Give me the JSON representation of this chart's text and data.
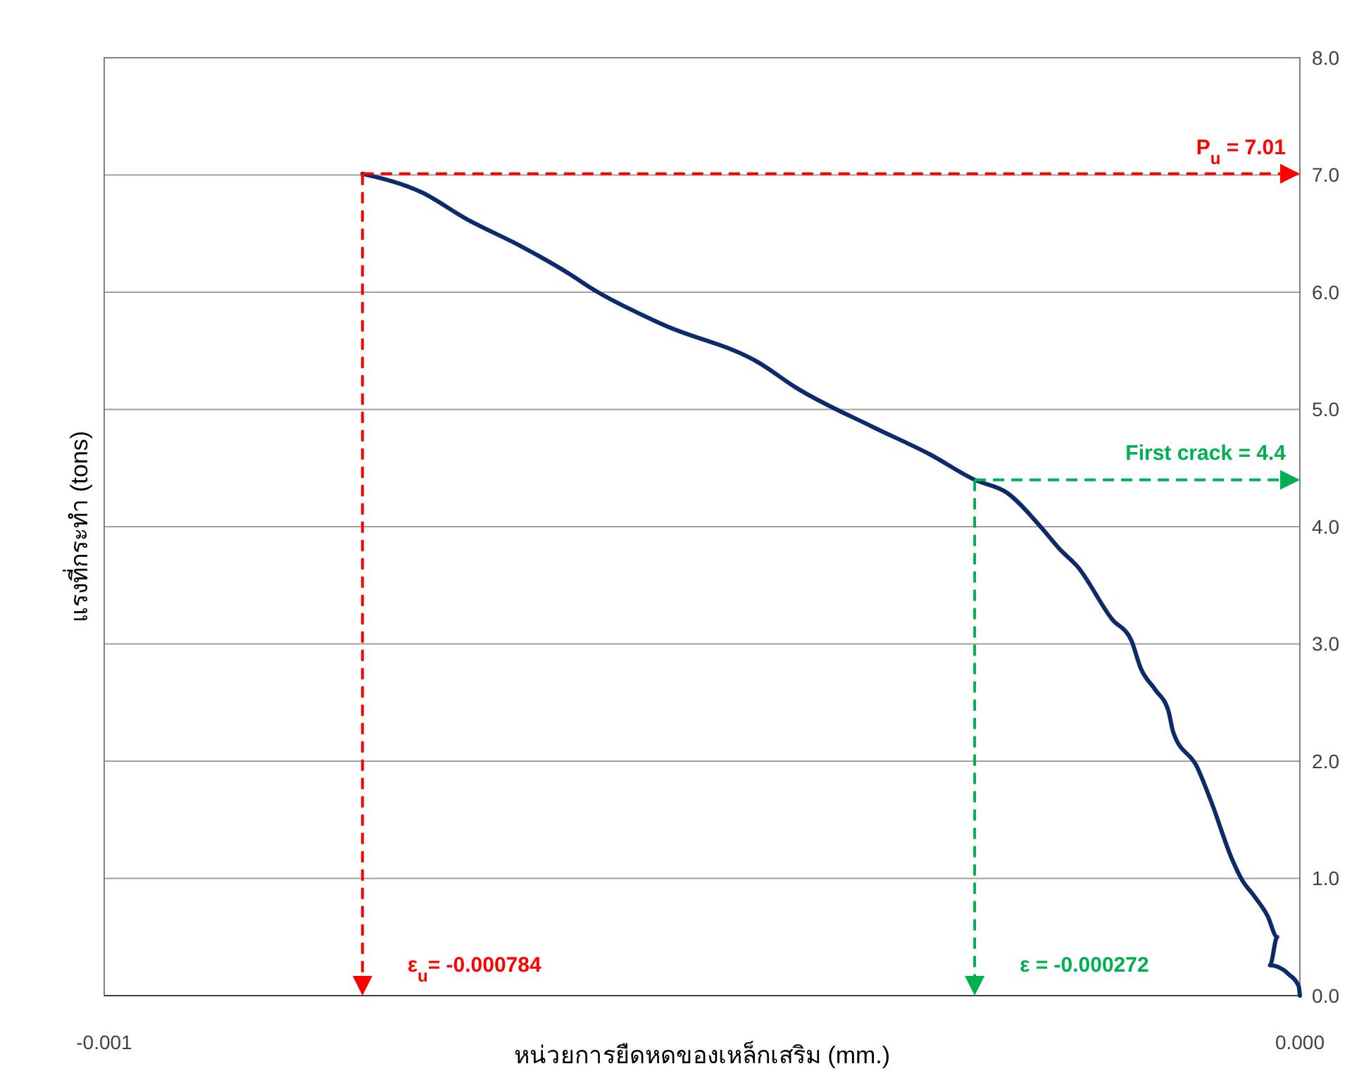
{
  "chart_data": {
    "type": "line",
    "xlabel": "หน่วยการยืดหดของเหล็กเสริม (mm.)",
    "ylabel": "แรงที่กระทำ (tons)",
    "xlim": [
      -0.001,
      0
    ],
    "xticks": [
      {
        "value": -0.001,
        "label": "-0.001"
      },
      {
        "value": 0,
        "label": "0.000"
      }
    ],
    "ylim": [
      0,
      8
    ],
    "yticks": [
      {
        "value": 0,
        "label": "0.0"
      },
      {
        "value": 1,
        "label": "1.0"
      },
      {
        "value": 2,
        "label": "2.0"
      },
      {
        "value": 3,
        "label": "3.0"
      },
      {
        "value": 4,
        "label": "4.0"
      },
      {
        "value": 5,
        "label": "5.0"
      },
      {
        "value": 6,
        "label": "6.0"
      },
      {
        "value": 7,
        "label": "7.0"
      },
      {
        "value": 8,
        "label": "8.0"
      }
    ],
    "grid": "y",
    "marker": "none",
    "line_style": "solid",
    "series": [
      {
        "color": "#0d2a6b",
        "x": [
          -0.000784,
          -0.000734,
          -0.000698,
          -0.000651,
          -0.00061,
          -0.000592,
          -0.000534,
          -0.000451,
          -0.000422,
          -0.000357,
          -0.00031,
          -0.000272,
          -0.000245,
          -0.000216,
          -0.000201,
          -0.000186,
          -0.000157,
          -0.000141,
          -0.000133,
          -0.000121,
          -0.00011,
          -0.000106,
          -8.6e-05,
          -7.4e-05,
          -5.7e-05,
          -4.8e-05,
          -3.9e-05,
          -2.7e-05,
          -1.9e-05,
          -2.5e-05,
          -9e-06,
          -1e-06,
          0
        ],
        "values": [
          7.01,
          6.85,
          6.63,
          6.39,
          6.15,
          6.03,
          5.73,
          5.39,
          5.19,
          4.85,
          4.62,
          4.4,
          4.29,
          3.99,
          3.81,
          3.66,
          3.21,
          3.03,
          2.79,
          2.61,
          2.43,
          2.25,
          1.95,
          1.65,
          1.17,
          0.98,
          0.86,
          0.68,
          0.5,
          0.26,
          0.18,
          0.08,
          0
        ]
      }
    ],
    "ref_lines": [
      {
        "axis": "y",
        "value": 7.01,
        "label": "P$_{u}$ = 7.01",
        "color": "#ff0000",
        "line_style": "dashed"
      },
      {
        "axis": "x",
        "value": -0.000784,
        "label": "ε$_{u}$= -0.000784",
        "color": "#ff0000",
        "line_style": "dashed"
      },
      {
        "axis": "y",
        "value": 4.4,
        "label": "First crack = 4.4",
        "color": "#00b050",
        "line_style": "dashed"
      },
      {
        "axis": "x",
        "value": -0.000272,
        "label": "ε = -0.000272",
        "color": "#00b050",
        "line_style": "dashed"
      }
    ]
  }
}
